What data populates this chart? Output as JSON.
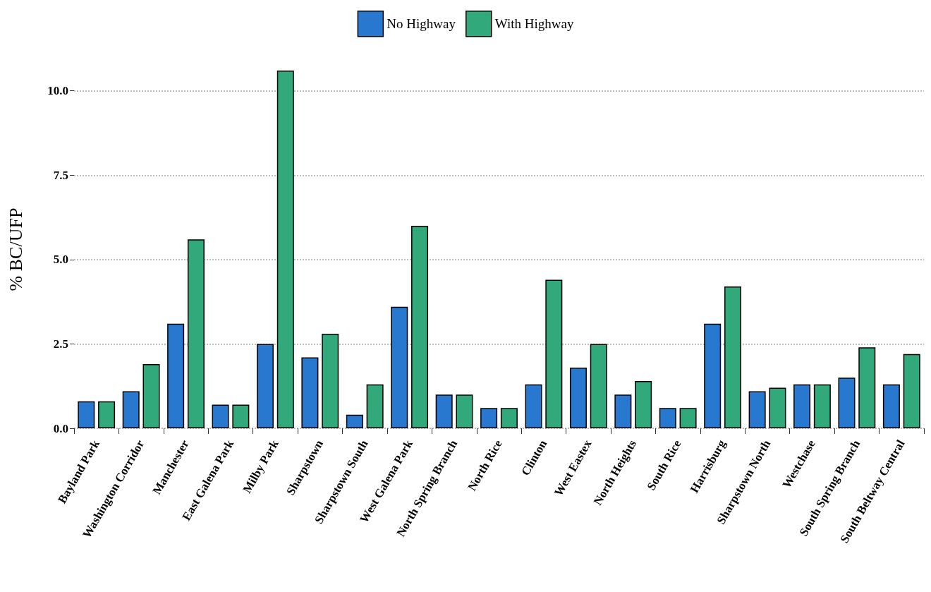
{
  "chart_data": {
    "type": "bar",
    "ylabel": "% BC/UFP",
    "categories": [
      "Bayland Park",
      "Washington Corridor",
      "Manchester",
      "East Galena Park",
      "Milby Park",
      "Sharpstown",
      "Sharpstown South",
      "West Galena Park",
      "North Spring Branch",
      "North Rice",
      "Clinton",
      "West Eastex",
      "North Heights",
      "South Rice",
      "Harrisburg",
      "Sharpstown North",
      "Westchase",
      "South Spring Branch",
      "South Beltway Central"
    ],
    "series": [
      {
        "name": "No Highway",
        "color": "#2878d0",
        "values": [
          0.8,
          1.1,
          3.1,
          0.7,
          2.5,
          2.1,
          0.4,
          3.6,
          1.0,
          0.6,
          1.3,
          1.8,
          1.0,
          0.6,
          3.1,
          1.1,
          1.3,
          1.5,
          1.3
        ]
      },
      {
        "name": "With Highway",
        "color": "#31a97a",
        "values": [
          0.8,
          1.9,
          5.6,
          0.7,
          10.6,
          2.8,
          1.3,
          6.0,
          1.0,
          0.6,
          4.4,
          2.5,
          1.4,
          0.6,
          4.2,
          1.2,
          1.3,
          2.4,
          2.2
        ]
      }
    ],
    "yticks": [
      {
        "value": 0,
        "label": "0.0"
      },
      {
        "value": 2.5,
        "label": "2.5"
      },
      {
        "value": 5,
        "label": "5.0"
      },
      {
        "value": 7.5,
        "label": "7.5"
      },
      {
        "value": 10,
        "label": "10.0"
      }
    ],
    "ylim": [
      0,
      10.6
    ],
    "grid": "y",
    "legend": "top"
  }
}
